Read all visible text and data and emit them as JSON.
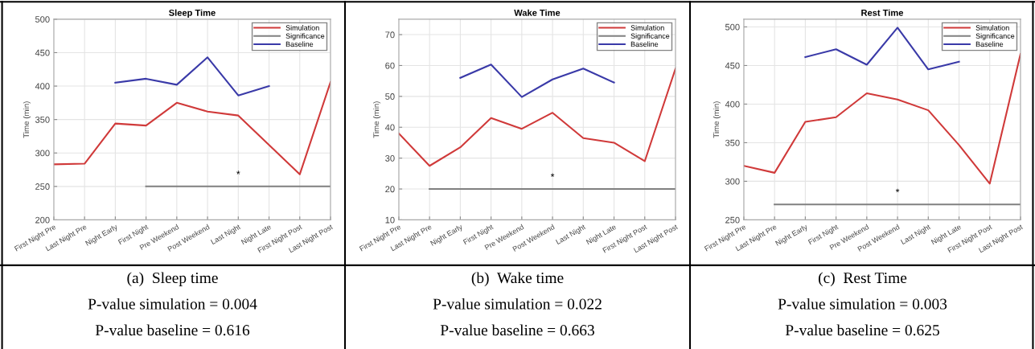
{
  "chart_data": [
    {
      "type": "line",
      "title": "Sleep Time",
      "ylabel": "Time (min)",
      "categories": [
        "First Night Pre",
        "Last Night Pre",
        "Night Early",
        "First Night",
        "Pre Weekend",
        "Post Weekend",
        "Last Night",
        "Night Late",
        "First Night Post",
        "Last Night Post"
      ],
      "series": [
        {
          "name": "Simulation",
          "color": "#d03a3a",
          "values": [
            283,
            284,
            344,
            341,
            375,
            362,
            356,
            312,
            268,
            406
          ]
        },
        {
          "name": "Significance",
          "color": "#808080",
          "values": [
            null,
            null,
            null,
            250,
            250,
            250,
            250,
            250,
            250,
            250
          ]
        },
        {
          "name": "Baseline",
          "color": "#3a3aa8",
          "values": [
            null,
            null,
            405,
            411,
            402,
            443,
            386,
            400,
            null,
            null
          ]
        }
      ],
      "ylim": [
        200,
        500
      ],
      "yticks": [
        200,
        250,
        300,
        350,
        400,
        450,
        500
      ],
      "grid": true,
      "legend": "top right",
      "annotations": [
        "*",
        "(a)  Sleep time",
        "P-value simulation = 0.004",
        "P-value baseline = 0.616"
      ]
    },
    {
      "type": "line",
      "title": "Wake Time",
      "ylabel": "Time (min)",
      "categories": [
        "First Night Pre",
        "Last Night Pre",
        "Night Early",
        "First Night",
        "Pre Weekend",
        "Post Weekend",
        "Last Night",
        "Night Late",
        "First Night Post",
        "Last Night Post"
      ],
      "series": [
        {
          "name": "Simulation",
          "color": "#d03a3a",
          "values": [
            38,
            27.5,
            33.5,
            43,
            39.5,
            44.7,
            36.5,
            35,
            29,
            59
          ]
        },
        {
          "name": "Significance",
          "color": "#808080",
          "values": [
            null,
            20,
            20,
            20,
            20,
            20,
            20,
            20,
            20,
            20
          ]
        },
        {
          "name": "Baseline",
          "color": "#3a3aa8",
          "values": [
            null,
            null,
            56,
            60.3,
            49.8,
            55.5,
            59,
            54.5,
            null,
            null
          ]
        }
      ],
      "ylim": [
        10,
        75
      ],
      "yticks": [
        10,
        20,
        30,
        40,
        50,
        60,
        70
      ],
      "grid": true,
      "legend": "top right",
      "annotations": [
        "*",
        "(b)  Wake time",
        "P-value simulation = 0.022",
        "P-value baseline = 0.663"
      ]
    },
    {
      "type": "line",
      "title": "Rest Time",
      "ylabel": "Time (min)",
      "categories": [
        "First Night Pre",
        "Last Night Pre",
        "Night Early",
        "First Night",
        "Pre Weekend",
        "Post Weekend",
        "Last Night",
        "Night Late",
        "First Night Post",
        "Last Night Post"
      ],
      "series": [
        {
          "name": "Simulation",
          "color": "#d03a3a",
          "values": [
            320,
            311,
            377,
            383,
            414,
            406,
            392,
            347,
            297,
            465
          ]
        },
        {
          "name": "Significance",
          "color": "#808080",
          "values": [
            null,
            270,
            270,
            270,
            270,
            270,
            270,
            270,
            270,
            270
          ]
        },
        {
          "name": "Baseline",
          "color": "#3a3aa8",
          "values": [
            null,
            null,
            461,
            471,
            451,
            499,
            445,
            455,
            null,
            null
          ]
        }
      ],
      "ylim": [
        250,
        510
      ],
      "yticks": [
        250,
        300,
        350,
        400,
        450,
        500
      ],
      "grid": true,
      "legend": "top right",
      "annotations": [
        "*",
        "(c)  Rest Time",
        "P-value simulation = 0.003",
        "P-value baseline = 0.625"
      ]
    }
  ]
}
